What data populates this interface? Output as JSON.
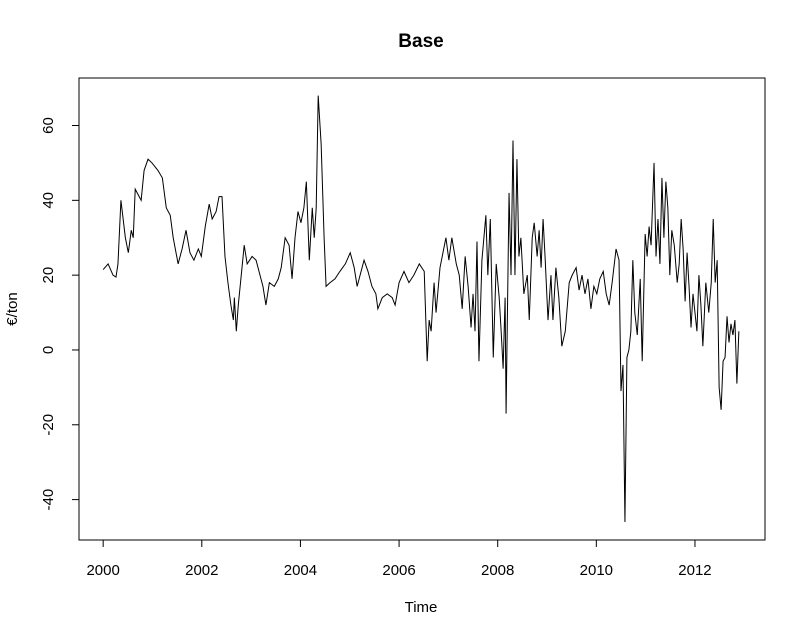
{
  "chart_data": {
    "type": "line",
    "title": "Base",
    "x_label": "Time",
    "y_label": "€/ton",
    "xlim": [
      1999.51,
      2013.42
    ],
    "ylim": [
      -50.8,
      72.7
    ],
    "xticks": [
      2000,
      2002,
      2004,
      2006,
      2008,
      2010,
      2012
    ],
    "yticks": [
      -40,
      -20,
      0,
      20,
      40,
      60
    ],
    "series": [
      {
        "color": "#000000",
        "x": [
          2000.0,
          2000.1,
          2000.2,
          2000.26,
          2000.3,
          2000.36,
          2000.45,
          2000.51,
          2000.57,
          2000.61,
          2000.65,
          2000.73,
          2000.77,
          2000.83,
          2000.91,
          2000.99,
          2001.11,
          2001.2,
          2001.28,
          2001.36,
          2001.42,
          2001.52,
          2001.6,
          2001.68,
          2001.76,
          2001.84,
          2001.93,
          2001.99,
          2002.07,
          2002.15,
          2002.21,
          2002.29,
          2002.35,
          2002.41,
          2002.47,
          2002.53,
          2002.59,
          2002.64,
          2002.66,
          2002.7,
          2002.74,
          2002.8,
          2002.86,
          2002.92,
          2003.02,
          2003.1,
          2003.18,
          2003.24,
          2003.3,
          2003.37,
          2003.47,
          2003.55,
          2003.61,
          2003.69,
          2003.77,
          2003.83,
          2003.89,
          2003.95,
          2004.01,
          2004.07,
          2004.12,
          2004.18,
          2004.24,
          2004.28,
          2004.32,
          2004.36,
          2004.42,
          2004.48,
          2004.52,
          2004.6,
          2004.7,
          2004.8,
          2004.91,
          2005.01,
          2005.09,
          2005.15,
          2005.21,
          2005.29,
          2005.37,
          2005.45,
          2005.53,
          2005.57,
          2005.66,
          2005.76,
          2005.86,
          2005.92,
          2006.0,
          2006.1,
          2006.2,
          2006.3,
          2006.41,
          2006.51,
          2006.57,
          2006.61,
          2006.65,
          2006.71,
          2006.75,
          2006.83,
          2006.95,
          2007.01,
          2007.07,
          2007.16,
          2007.22,
          2007.28,
          2007.34,
          2007.4,
          2007.46,
          2007.5,
          2007.54,
          2007.58,
          2007.62,
          2007.68,
          2007.76,
          2007.8,
          2007.85,
          2007.91,
          2007.97,
          2008.03,
          2008.07,
          2008.11,
          2008.15,
          2008.17,
          2008.23,
          2008.27,
          2008.31,
          2008.35,
          2008.39,
          2008.43,
          2008.47,
          2008.53,
          2008.6,
          2008.64,
          2008.7,
          2008.74,
          2008.8,
          2008.84,
          2008.88,
          2008.92,
          2008.96,
          2009.02,
          2009.08,
          2009.12,
          2009.18,
          2009.24,
          2009.3,
          2009.37,
          2009.45,
          2009.51,
          2009.59,
          2009.65,
          2009.71,
          2009.77,
          2009.83,
          2009.89,
          2009.95,
          2010.01,
          2010.07,
          2010.14,
          2010.2,
          2010.26,
          2010.32,
          2010.4,
          2010.46,
          2010.5,
          2010.54,
          2010.58,
          2010.62,
          2010.66,
          2010.7,
          2010.74,
          2010.78,
          2010.83,
          2010.89,
          2010.93,
          2010.99,
          2011.03,
          2011.07,
          2011.11,
          2011.17,
          2011.21,
          2011.25,
          2011.29,
          2011.33,
          2011.37,
          2011.41,
          2011.45,
          2011.49,
          2011.53,
          2011.58,
          2011.64,
          2011.68,
          2011.72,
          2011.76,
          2011.8,
          2011.84,
          2011.88,
          2011.92,
          2011.96,
          2012.0,
          2012.04,
          2012.08,
          2012.12,
          2012.16,
          2012.22,
          2012.28,
          2012.33,
          2012.37,
          2012.41,
          2012.45,
          2012.49,
          2012.53,
          2012.57,
          2012.61,
          2012.65,
          2012.69,
          2012.73,
          2012.77,
          2012.81,
          2012.85,
          2012.89
        ],
        "values": [
          21.5,
          23,
          20,
          19.5,
          23,
          40,
          30,
          26,
          32,
          30,
          43,
          41,
          40,
          48,
          51,
          50,
          48,
          46,
          38,
          36,
          30,
          23,
          27,
          32,
          26,
          24,
          27,
          25,
          33,
          39,
          35,
          37,
          41,
          41,
          25,
          18,
          12,
          8,
          14,
          5,
          12,
          20,
          28,
          23,
          25,
          24,
          20,
          17,
          12,
          18,
          17,
          19,
          22,
          30,
          28,
          19,
          30,
          37,
          34,
          38,
          45,
          24,
          38,
          30,
          38,
          68,
          55,
          30,
          17,
          18,
          19,
          21,
          23,
          26,
          22,
          17,
          20,
          24,
          21,
          17,
          15,
          11,
          14,
          15,
          14,
          12,
          18,
          21,
          18,
          20,
          23,
          21,
          -3,
          8,
          5,
          18,
          10,
          22,
          30,
          24,
          30,
          23,
          20,
          11,
          25,
          17,
          6,
          15,
          5,
          29,
          -3,
          24,
          36,
          20,
          35,
          -2,
          23,
          14,
          5,
          -5,
          14,
          -17,
          42,
          20,
          56,
          20,
          51,
          25,
          30,
          15,
          20,
          8,
          30,
          34,
          25,
          32,
          22,
          35,
          25,
          8,
          20,
          8,
          22,
          14,
          1,
          5,
          18,
          20,
          22,
          16,
          20,
          15,
          19,
          11,
          17,
          15,
          19,
          21,
          15,
          12,
          18,
          27,
          24,
          -11,
          -4,
          -46,
          -2,
          0,
          5,
          24,
          10,
          4,
          19,
          -3,
          31,
          25,
          33,
          28,
          50,
          25,
          35,
          23,
          46,
          30,
          45,
          38,
          20,
          32,
          28,
          18,
          23,
          35,
          27,
          13,
          26,
          17,
          6,
          15,
          10,
          5,
          20,
          12,
          1,
          18,
          10,
          18,
          35,
          18,
          24,
          -10,
          -16,
          -3,
          -2,
          9,
          2,
          7,
          4,
          8,
          -9,
          5
        ]
      }
    ]
  }
}
